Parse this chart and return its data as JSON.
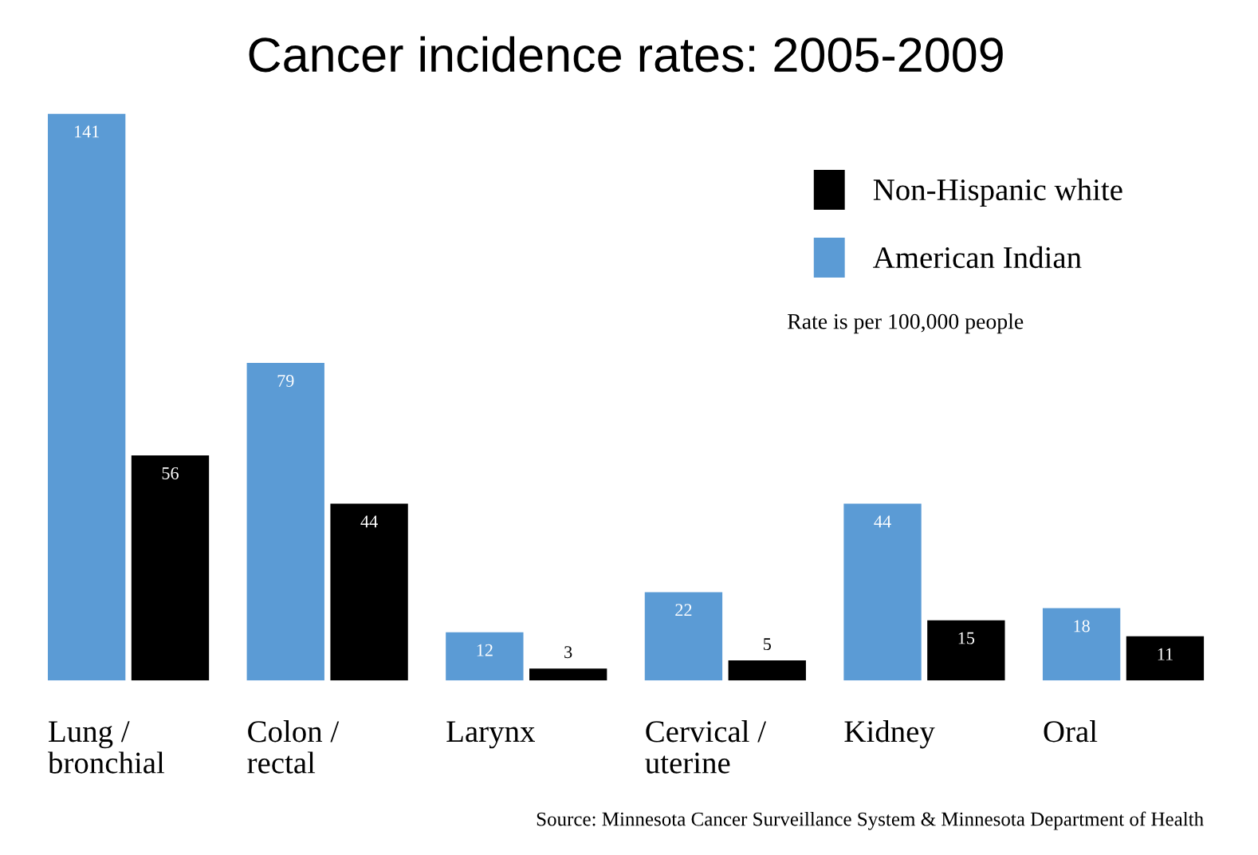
{
  "chart_data": {
    "type": "bar",
    "title": "Cancer incidence rates: 2005-2009",
    "categories": [
      "Lung / bronchial",
      "Colon / rectal",
      "Larynx",
      "Cervical / uterine",
      "Kidney",
      "Oral"
    ],
    "series": [
      {
        "name": "American Indian",
        "color": "#5b9bd5",
        "values": [
          141,
          79,
          12,
          22,
          44,
          18
        ]
      },
      {
        "name": "Non-Hispanic white",
        "color": "#000000",
        "values": [
          56,
          44,
          3,
          5,
          15,
          11
        ]
      }
    ],
    "data_labels": true,
    "tick_labels": false,
    "legend": "top right",
    "annotations": [
      "Rate is per 100,000 people",
      "Source: Minnesota Cancer Surveillance System & Minnesota Department of Health"
    ]
  }
}
